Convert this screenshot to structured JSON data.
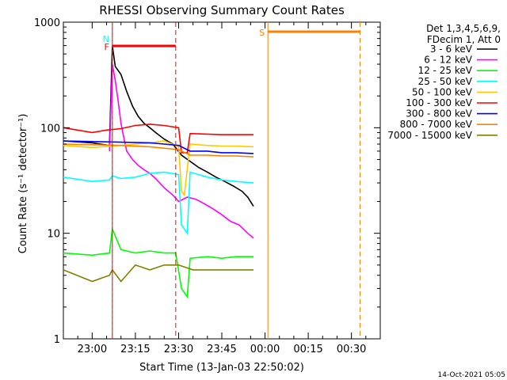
{
  "chart_data": {
    "type": "line",
    "title": "RHESSI Observing Summary Count Rates",
    "xlabel": "Start Time (13-Jan-03 22:50:02)",
    "ylabel": "Count Rate (s⁻¹ detector⁻¹)",
    "yscale": "log",
    "ylim": [
      1,
      1000
    ],
    "xlim_minutes": [
      -10,
      100
    ],
    "x_ticks": [
      {
        "label": "23:00",
        "t": 0
      },
      {
        "label": "23:15",
        "t": 15
      },
      {
        "label": "23:30",
        "t": 30
      },
      {
        "label": "23:45",
        "t": 45
      },
      {
        "label": "00:00",
        "t": 60
      },
      {
        "label": "00:15",
        "t": 75
      },
      {
        "label": "00:30",
        "t": 90
      }
    ],
    "y_ticks": [
      {
        "label": "1",
        "v": 1
      },
      {
        "label": "10",
        "v": 10
      },
      {
        "label": "100",
        "v": 100
      },
      {
        "label": "1000",
        "v": 1000
      }
    ],
    "legend_header": [
      "Det 1,3,4,5,6,9,",
      "FDecim 1, Att 0"
    ],
    "legend_position": "right",
    "series": [
      {
        "name": "3 - 6 keV",
        "color": "#000000",
        "points": [
          [
            -10,
            75
          ],
          [
            0,
            72
          ],
          [
            6,
            68
          ],
          [
            7,
            600
          ],
          [
            8,
            380
          ],
          [
            10,
            320
          ],
          [
            12,
            220
          ],
          [
            14,
            160
          ],
          [
            16,
            128
          ],
          [
            18,
            110
          ],
          [
            20,
            100
          ],
          [
            22,
            90
          ],
          [
            25,
            78
          ],
          [
            28,
            70
          ],
          [
            31,
            55
          ],
          [
            34,
            48
          ],
          [
            37,
            42
          ],
          [
            40,
            38
          ],
          [
            43,
            34
          ],
          [
            46,
            31
          ],
          [
            49,
            28
          ],
          [
            52,
            25
          ],
          [
            54,
            22
          ],
          [
            56,
            18
          ]
        ]
      },
      {
        "name": "6 - 12 keV",
        "color": "#ff00ff",
        "points": [
          [
            6,
            60
          ],
          [
            7,
            400
          ],
          [
            8,
            280
          ],
          [
            9,
            180
          ],
          [
            10,
            110
          ],
          [
            11,
            80
          ],
          [
            12,
            60
          ],
          [
            14,
            50
          ],
          [
            16,
            44
          ],
          [
            18,
            40
          ],
          [
            20,
            37
          ],
          [
            22,
            33
          ],
          [
            25,
            27
          ],
          [
            28,
            23
          ],
          [
            30,
            20
          ],
          [
            33,
            22
          ],
          [
            36,
            21
          ],
          [
            39,
            19
          ],
          [
            42,
            17
          ],
          [
            45,
            15
          ],
          [
            48,
            13
          ],
          [
            51,
            12
          ],
          [
            54,
            10
          ],
          [
            56,
            9
          ]
        ]
      },
      {
        "name": "12 - 25 keV",
        "color": "#00ff00",
        "points": [
          [
            -10,
            6.5
          ],
          [
            0,
            6.2
          ],
          [
            6,
            6.5
          ],
          [
            7,
            11
          ],
          [
            10,
            7
          ],
          [
            15,
            6.5
          ],
          [
            20,
            6.8
          ],
          [
            25,
            6.5
          ],
          [
            29,
            6.5
          ],
          [
            31,
            3
          ],
          [
            33,
            2.5
          ],
          [
            34,
            5.8
          ],
          [
            40,
            6
          ],
          [
            45,
            5.8
          ],
          [
            50,
            6
          ],
          [
            56,
            6
          ]
        ]
      },
      {
        "name": "25 - 50 keV",
        "color": "#00ffff",
        "points": [
          [
            -10,
            34
          ],
          [
            0,
            31
          ],
          [
            6,
            32
          ],
          [
            7,
            35
          ],
          [
            10,
            33
          ],
          [
            15,
            34
          ],
          [
            20,
            37
          ],
          [
            25,
            38
          ],
          [
            30,
            36
          ],
          [
            31,
            12
          ],
          [
            33,
            10
          ],
          [
            34,
            38
          ],
          [
            40,
            34
          ],
          [
            45,
            32
          ],
          [
            50,
            31
          ],
          [
            56,
            30
          ]
        ]
      },
      {
        "name": "50 - 100 keV",
        "color": "#ffc800",
        "points": [
          [
            -10,
            68
          ],
          [
            0,
            65
          ],
          [
            10,
            68
          ],
          [
            20,
            72
          ],
          [
            25,
            75
          ],
          [
            30,
            66
          ],
          [
            31,
            25
          ],
          [
            32,
            23
          ],
          [
            34,
            70
          ],
          [
            40,
            68
          ],
          [
            45,
            67
          ],
          [
            50,
            67
          ],
          [
            56,
            66
          ]
        ]
      },
      {
        "name": "100 - 300 keV",
        "color": "#ff0000",
        "points": [
          [
            -10,
            100
          ],
          [
            0,
            90
          ],
          [
            5,
            95
          ],
          [
            10,
            98
          ],
          [
            15,
            105
          ],
          [
            20,
            108
          ],
          [
            25,
            105
          ],
          [
            30,
            100
          ],
          [
            31,
            58
          ],
          [
            33,
            58
          ],
          [
            34,
            88
          ],
          [
            40,
            87
          ],
          [
            45,
            86
          ],
          [
            50,
            86
          ],
          [
            56,
            86
          ]
        ]
      },
      {
        "name": "300 - 800 keV",
        "color": "#0000ff",
        "points": [
          [
            -10,
            75
          ],
          [
            0,
            74
          ],
          [
            10,
            73
          ],
          [
            20,
            72
          ],
          [
            25,
            70
          ],
          [
            30,
            68
          ],
          [
            34,
            60
          ],
          [
            40,
            60
          ],
          [
            45,
            58
          ],
          [
            50,
            58
          ],
          [
            56,
            57
          ]
        ]
      },
      {
        "name": "800 - 7000 keV",
        "color": "#ff8000",
        "points": [
          [
            -10,
            70
          ],
          [
            0,
            69
          ],
          [
            10,
            68
          ],
          [
            20,
            66
          ],
          [
            25,
            64
          ],
          [
            30,
            62
          ],
          [
            34,
            55
          ],
          [
            40,
            55
          ],
          [
            45,
            54
          ],
          [
            50,
            54
          ],
          [
            56,
            53
          ]
        ]
      },
      {
        "name": "7000 - 15000 keV",
        "color": "#808000",
        "points": [
          [
            -10,
            4.5
          ],
          [
            0,
            3.5
          ],
          [
            6,
            4
          ],
          [
            7,
            4.5
          ],
          [
            10,
            3.5
          ],
          [
            15,
            5
          ],
          [
            20,
            4.5
          ],
          [
            25,
            5
          ],
          [
            30,
            5
          ],
          [
            35,
            4.5
          ],
          [
            40,
            4.5
          ],
          [
            45,
            4.5
          ],
          [
            50,
            4.5
          ],
          [
            56,
            4.5
          ]
        ]
      }
    ],
    "flags": [
      {
        "label": "N",
        "color": "#00ffff",
        "start": 7,
        "stop": null
      },
      {
        "label": "F",
        "color": "#ff0000",
        "start": 7,
        "stop": 29
      },
      {
        "label": "S",
        "color": "#ff8000",
        "start": 61,
        "stop": 93
      }
    ],
    "footer_date": "14-Oct-2021 05:05"
  }
}
